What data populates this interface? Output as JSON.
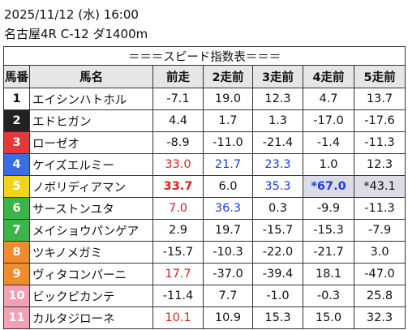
{
  "header": {
    "datetime": "2025/11/12 (水) 16:00",
    "race": "名古屋4R C-12 ダ1400m"
  },
  "table": {
    "title": "＝＝＝スピード指数表＝＝＝",
    "columns": [
      "馬番",
      "馬名",
      "前走",
      "2走前",
      "3走前",
      "4走前",
      "5走前"
    ],
    "rows": [
      {
        "num": "1",
        "name": "エイシンハトホル",
        "gate_color": "white",
        "values": [
          "-7.1",
          "19.0",
          "12.3",
          "4.7",
          "13.7"
        ],
        "value_styles": [
          "plain",
          "plain",
          "plain",
          "plain",
          "plain"
        ]
      },
      {
        "num": "2",
        "name": "エドヒガン",
        "gate_color": "black",
        "values": [
          "4.4",
          "1.7",
          "1.3",
          "-17.0",
          "-17.6"
        ],
        "value_styles": [
          "plain",
          "plain",
          "plain",
          "plain",
          "plain"
        ]
      },
      {
        "num": "3",
        "name": "ローゼオ",
        "gate_color": "red",
        "values": [
          "-8.9",
          "-11.0",
          "-21.4",
          "-1.4",
          "-11.3"
        ],
        "value_styles": [
          "plain",
          "plain",
          "plain",
          "plain",
          "plain"
        ]
      },
      {
        "num": "4",
        "name": "ケイズエルミー",
        "gate_color": "blue",
        "values": [
          "33.0",
          "21.7",
          "23.3",
          "1.0",
          "12.3"
        ],
        "value_styles": [
          "red",
          "blue",
          "blue",
          "plain",
          "plain"
        ]
      },
      {
        "num": "5",
        "name": "ノボリディアマン",
        "gate_color": "yellow",
        "values": [
          "33.7",
          "6.0",
          "35.3",
          "*67.0",
          "*43.1"
        ],
        "value_styles": [
          "bold-red",
          "plain",
          "blue",
          "bold-blue-shaded",
          "shaded"
        ]
      },
      {
        "num": "6",
        "name": "サーストンユタ",
        "gate_color": "green",
        "values": [
          "7.0",
          "36.3",
          "0.3",
          "-9.9",
          "-11.3"
        ],
        "value_styles": [
          "red",
          "blue",
          "plain",
          "plain",
          "plain"
        ]
      },
      {
        "num": "7",
        "name": "メイショウパンゲア",
        "gate_color": "green",
        "values": [
          "2.9",
          "19.7",
          "-15.7",
          "-15.3",
          "-7.9"
        ],
        "value_styles": [
          "plain",
          "plain",
          "plain",
          "plain",
          "plain"
        ]
      },
      {
        "num": "8",
        "name": "ツキノメガミ",
        "gate_color": "orange",
        "values": [
          "-15.7",
          "-10.3",
          "-22.0",
          "-21.7",
          "3.0"
        ],
        "value_styles": [
          "plain",
          "plain",
          "plain",
          "plain",
          "plain"
        ]
      },
      {
        "num": "9",
        "name": "ヴィタコンパーニ",
        "gate_color": "orange",
        "values": [
          "17.7",
          "-37.0",
          "-39.4",
          "18.1",
          "-47.0"
        ],
        "value_styles": [
          "red",
          "plain",
          "plain",
          "plain",
          "plain"
        ]
      },
      {
        "num": "10",
        "name": "ビックピカンテ",
        "gate_color": "pink",
        "values": [
          "-11.4",
          "7.7",
          "-1.0",
          "-0.3",
          "25.8"
        ],
        "value_styles": [
          "plain",
          "plain",
          "plain",
          "plain",
          "plain"
        ]
      },
      {
        "num": "11",
        "name": "カルタジローネ",
        "gate_color": "pink",
        "values": [
          "10.1",
          "10.9",
          "15.3",
          "15.0",
          "32.3"
        ],
        "value_styles": [
          "red",
          "plain",
          "plain",
          "plain",
          "plain"
        ]
      }
    ]
  }
}
